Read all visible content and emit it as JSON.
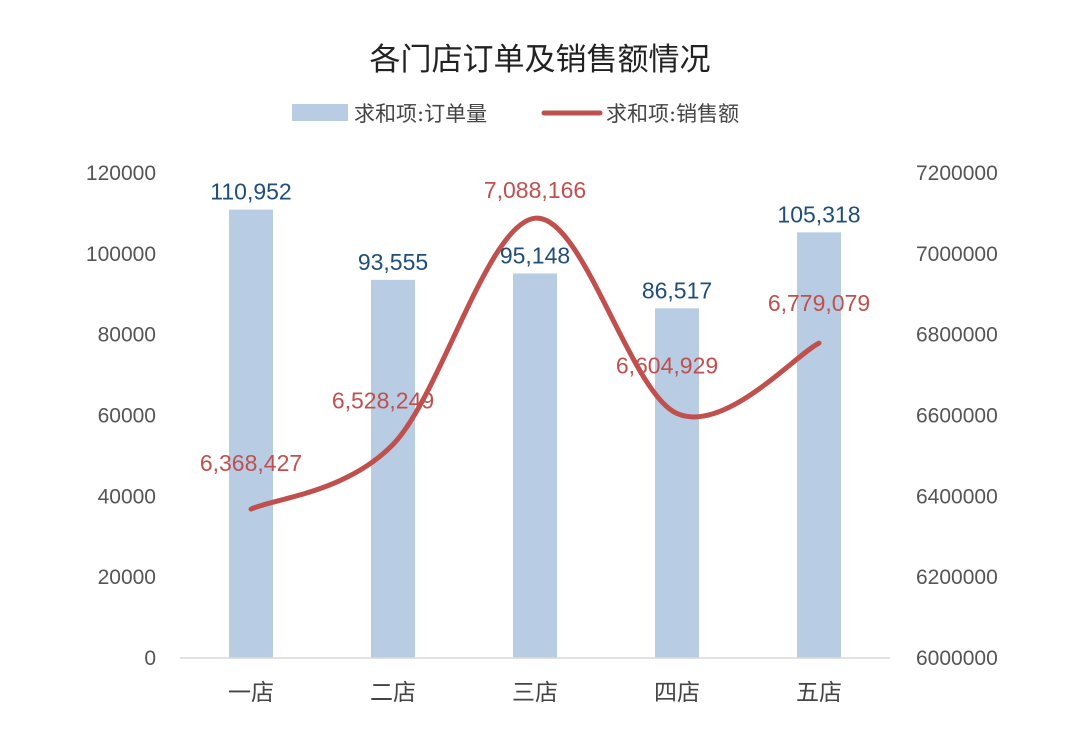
{
  "chart_data": {
    "type": "bar+line",
    "title": "各门店订单及销售额情况",
    "categories": [
      "一店",
      "二店",
      "三店",
      "四店",
      "五店"
    ],
    "series": [
      {
        "name": "求和项:订单量",
        "type": "bar",
        "axis": "left",
        "values": [
          110952,
          93555,
          95148,
          86517,
          105318
        ],
        "labels": [
          "110,952",
          "93,555",
          "95,148",
          "86,517",
          "105,318"
        ],
        "color": "#b8cce4",
        "label_color": "#1f4e79"
      },
      {
        "name": "求和项:销售额",
        "type": "line",
        "smooth": true,
        "axis": "right",
        "values": [
          6368427,
          6528249,
          7088166,
          6604929,
          6779079
        ],
        "labels": [
          "6,368,427",
          "6,528,249",
          "7,088,166",
          "6,604,929",
          "6,779,079"
        ],
        "color": "#c0504d",
        "label_color": "#c0504d"
      }
    ],
    "y_left": {
      "min": 0,
      "max": 120000,
      "ticks": [
        0,
        20000,
        40000,
        60000,
        80000,
        100000,
        120000
      ],
      "tick_labels": [
        "0",
        "20000",
        "40000",
        "60000",
        "80000",
        "100000",
        "120000"
      ]
    },
    "y_right": {
      "min": 6000000,
      "max": 7200000,
      "ticks": [
        6000000,
        6200000,
        6400000,
        6600000,
        6800000,
        7000000,
        7200000
      ],
      "tick_labels": [
        "6000000",
        "6200000",
        "6400000",
        "6600000",
        "6800000",
        "7000000",
        "7200000"
      ]
    },
    "grid": false,
    "legend": "top-center"
  }
}
